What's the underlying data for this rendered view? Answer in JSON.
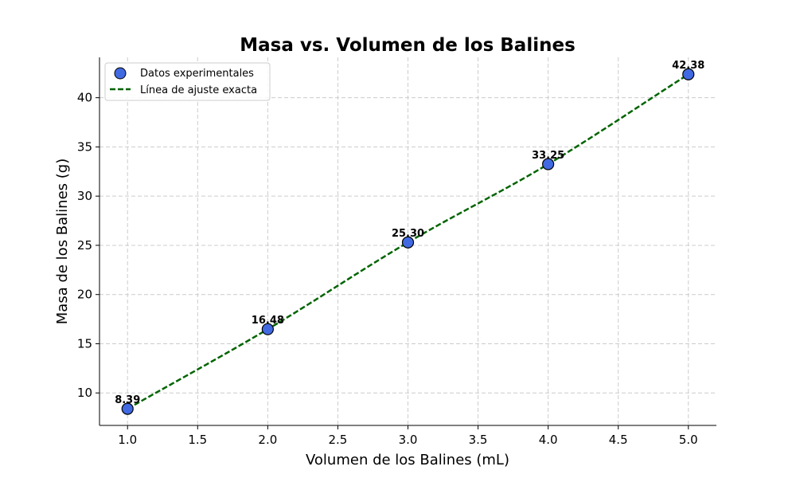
{
  "chart_data": {
    "type": "scatter",
    "title": "Masa vs. Volumen de los Balines",
    "xlabel": "Volumen de los Balines (mL)",
    "ylabel": "Masa de los Balines (g)",
    "xlim": [
      0.8,
      5.2
    ],
    "ylim": [
      6.7,
      44.1
    ],
    "xticks": [
      "1.0",
      "1.5",
      "2.0",
      "2.5",
      "3.0",
      "3.5",
      "4.0",
      "4.5",
      "5.0"
    ],
    "yticks": [
      "10",
      "15",
      "20",
      "25",
      "30",
      "35",
      "40"
    ],
    "grid": true,
    "legend_position": "top-left",
    "series": [
      {
        "name": "Datos experimentales",
        "kind": "scatter",
        "color": "#4169e1",
        "edge_color": "#000000",
        "x": [
          1.0,
          2.0,
          3.0,
          4.0,
          5.0
        ],
        "y": [
          8.39,
          16.48,
          25.3,
          33.25,
          42.38
        ],
        "labels": [
          "8.39",
          "16.48",
          "25.30",
          "33.25",
          "42.38"
        ]
      },
      {
        "name": "Línea de ajuste exacta",
        "kind": "line",
        "style": "dashed",
        "color": "#006400",
        "x": [
          1.0,
          2.0,
          3.0,
          4.0,
          5.0
        ],
        "y": [
          8.39,
          16.48,
          25.3,
          33.25,
          42.38
        ]
      }
    ]
  }
}
